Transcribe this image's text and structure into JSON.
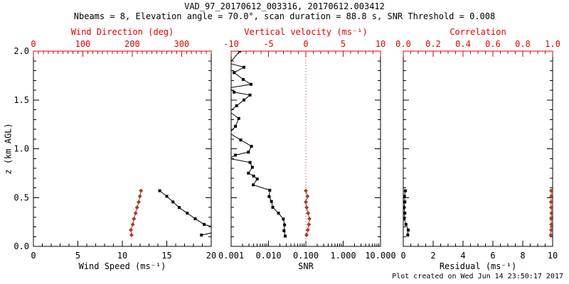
{
  "title": "VAD_97_20170612_003316, 20170612.003412",
  "subtitle": "Nbeams = 8, Elevation angle = 70.0°, scan duration = 88.8 s, SNR Threshold = 0.008",
  "footer": "Plot created on Wed Jun 14 23:50:17 2017",
  "colors": {
    "axis_red": "#dd0000",
    "marker_red": "#a93d2a",
    "black": "#000000",
    "background": "#ffffff"
  },
  "y_axis": {
    "label": "z (km AGL)",
    "min": 0,
    "max": 2,
    "tick_values": [
      0,
      0.5,
      1.0,
      1.5,
      2.0
    ],
    "tick_labels": [
      "0.0",
      "0.5",
      "1.0",
      "1.5",
      "2.0"
    ],
    "minor_step": 0.1
  },
  "chart_data": [
    {
      "type": "line-scatter",
      "panel": "wind",
      "x_bottom": {
        "label": "Wind Speed (ms⁻¹)",
        "min": 0,
        "max": 20,
        "tick_values": [
          0,
          5,
          10,
          15,
          20
        ],
        "tick_labels": [
          "0",
          "5",
          "10",
          "15",
          "20"
        ],
        "minor_step": 1,
        "color": "black"
      },
      "x_top": {
        "label": "Wind Direction (deg)",
        "min": 0,
        "max": 360,
        "tick_values": [
          0,
          100,
          200,
          300
        ],
        "tick_labels": [
          "0",
          "100",
          "200",
          "300"
        ],
        "minor_step": 10,
        "color": "red"
      },
      "series": [
        {
          "name": "wind-speed",
          "axis": "bottom",
          "color": "black",
          "marker": "square",
          "z": [
            0.116,
            0.168,
            0.225,
            0.283,
            0.34,
            0.398,
            0.455,
            0.513,
            0.57
          ],
          "values": [
            18.9,
            21.5,
            19.2,
            18.2,
            17.3,
            16.4,
            15.7,
            15.0,
            14.2
          ]
        },
        {
          "name": "wind-direction",
          "axis": "top",
          "color": "red",
          "marker": "diamond",
          "z": [
            0.116,
            0.168,
            0.225,
            0.283,
            0.34,
            0.398,
            0.455,
            0.513,
            0.57
          ],
          "values": [
            198.7,
            197.3,
            201.1,
            203.5,
            206.9,
            209.8,
            213.1,
            215.5,
            217.9
          ]
        }
      ]
    },
    {
      "type": "line-scatter",
      "panel": "snr",
      "x_bottom": {
        "label": "SNR",
        "scale": "log",
        "min": 0.001,
        "max": 10,
        "tick_values": [
          0.001,
          0.01,
          0.1,
          1,
          10
        ],
        "tick_labels": [
          "0.001",
          "0.010",
          "0.100",
          "1.000",
          "10.000"
        ],
        "color": "black"
      },
      "x_top": {
        "label": "Vertical velocity (ms⁻¹)",
        "min": -10,
        "max": 10,
        "tick_values": [
          -10,
          -5,
          0,
          5,
          10
        ],
        "tick_labels": [
          "-10",
          "-5",
          "0",
          "5",
          "10"
        ],
        "minor_step": 1,
        "color": "red"
      },
      "ref_line": {
        "axis": "top",
        "value": 0,
        "style": "dotted",
        "color": "red"
      },
      "series": [
        {
          "name": "snr",
          "axis": "bottom",
          "color": "black",
          "marker": "square",
          "z": [
            0.105,
            0.16,
            0.22,
            0.28,
            0.34,
            0.4,
            0.46,
            0.51,
            0.575,
            0.63,
            0.69,
            0.72,
            0.75,
            0.81,
            0.86,
            0.9,
            0.935,
            0.965,
            1.025,
            1.09,
            1.16,
            1.23,
            1.31,
            1.38,
            1.44,
            1.5,
            1.55,
            1.58,
            1.625,
            1.66,
            1.71,
            1.78,
            1.835,
            1.875,
            2.0
          ],
          "values": [
            0.028,
            0.026,
            0.027,
            0.025,
            0.0185,
            0.013,
            0.012,
            0.0104,
            0.0108,
            0.0039,
            0.005,
            0.004,
            0.0029,
            0.0037,
            0.0032,
            0.0009,
            0.0013,
            0.0029,
            0.0035,
            0.0018,
            0.0009,
            0.0013,
            0.0016,
            0.0009,
            0.0014,
            0.0022,
            0.0032,
            0.0012,
            0.0009,
            0.0034,
            0.0021,
            0.0012,
            0.0022,
            0.0009,
            0.0017
          ]
        },
        {
          "name": "vertical-velocity",
          "axis": "top",
          "color": "red",
          "marker": "diamond",
          "z": [
            0.116,
            0.168,
            0.225,
            0.283,
            0.34,
            0.398,
            0.455,
            0.513,
            0.57
          ],
          "values": [
            0.1,
            0.26,
            0.41,
            0.48,
            0.31,
            0.1,
            0.0,
            0.22,
            0.0
          ]
        }
      ]
    },
    {
      "type": "line-scatter",
      "panel": "residual",
      "x_bottom": {
        "label": "Residual (ms⁻¹)",
        "min": 0,
        "max": 10,
        "tick_values": [
          0,
          2,
          4,
          6,
          8,
          10
        ],
        "tick_labels": [
          "0",
          "2",
          "4",
          "6",
          "8",
          "10"
        ],
        "minor_step": 0.5,
        "color": "black"
      },
      "x_top": {
        "label": "Correlation",
        "min": 0,
        "max": 1,
        "tick_values": [
          0,
          0.2,
          0.4,
          0.6,
          0.8,
          1.0
        ],
        "tick_labels": [
          "0.0",
          "0.2",
          "0.4",
          "0.6",
          "0.8",
          "1.0"
        ],
        "minor_step": 0.05,
        "color": "red"
      },
      "series": [
        {
          "name": "residual",
          "axis": "bottom",
          "color": "black",
          "marker": "square",
          "z": [
            0.116,
            0.168,
            0.225,
            0.283,
            0.34,
            0.398,
            0.455,
            0.513,
            0.57
          ],
          "values": [
            0.3,
            0.33,
            0.18,
            0.06,
            0.11,
            0.05,
            0.11,
            0.08,
            0.14
          ]
        },
        {
          "name": "correlation",
          "axis": "top",
          "color": "red",
          "marker": "diamond",
          "z": [
            0.116,
            0.168,
            0.225,
            0.283,
            0.34,
            0.398,
            0.455,
            0.513,
            0.57
          ],
          "values": [
            0.988,
            0.99,
            0.991,
            0.99,
            0.992,
            0.99,
            0.989,
            0.991,
            0.99
          ]
        }
      ]
    }
  ]
}
